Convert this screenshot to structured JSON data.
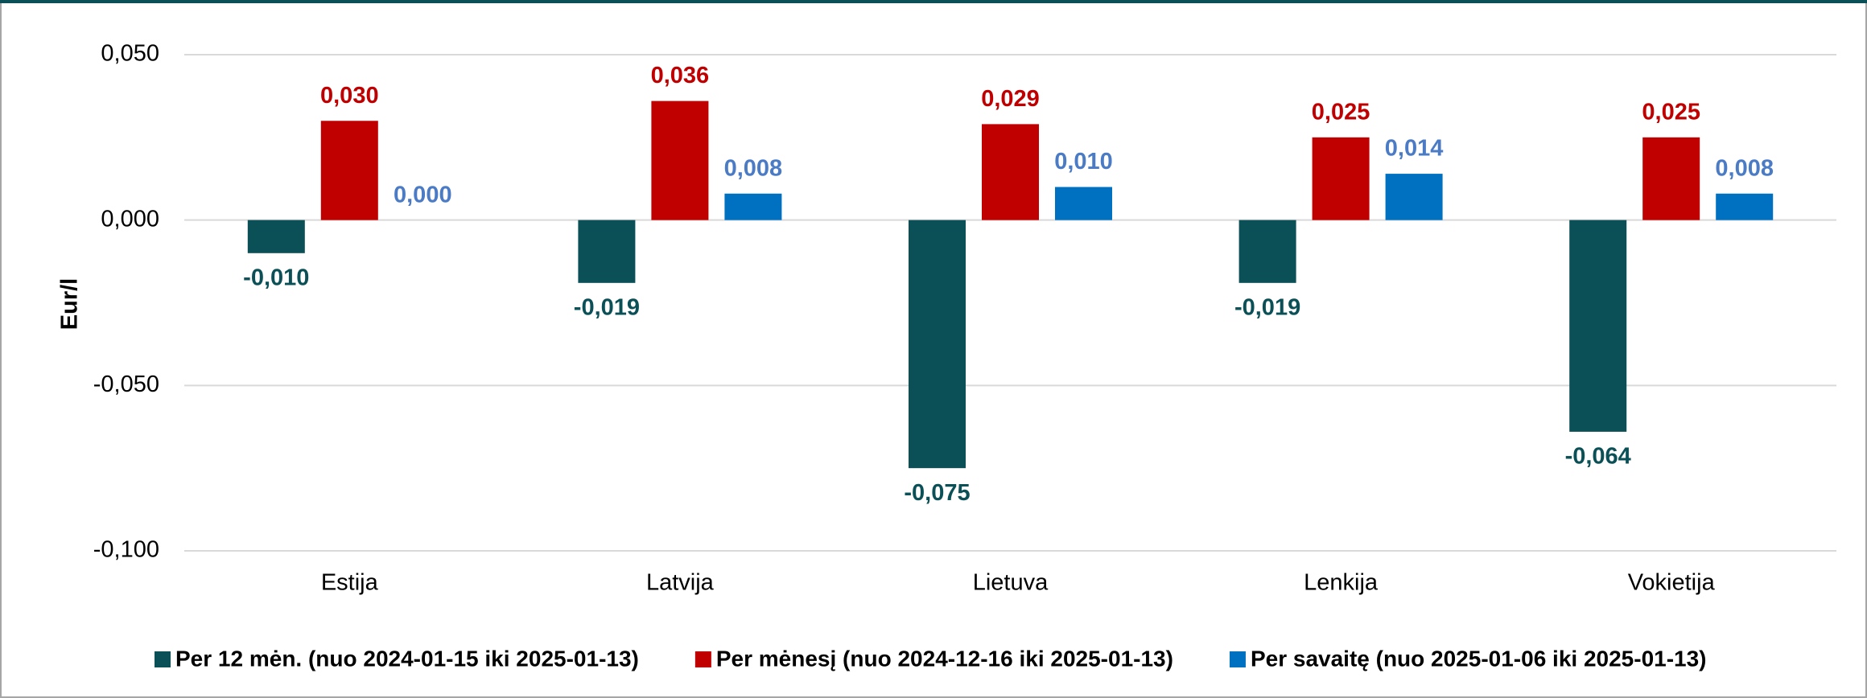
{
  "chart_data": {
    "type": "bar",
    "y_axis_label": "Eur/l",
    "categories": [
      "Estija",
      "Latvija",
      "Lietuva",
      "Lenkija",
      "Vokietija"
    ],
    "series": [
      {
        "name": "Per 12 mėn. (nuo 2024-01-15 iki 2025-01-13)",
        "color": "#0b5057",
        "label_color": "#0b5057",
        "values": [
          -0.01,
          -0.019,
          -0.075,
          -0.019,
          -0.064
        ],
        "value_labels": [
          "-0,010",
          "-0,019",
          "-0,075",
          "-0,019",
          "-0,064"
        ]
      },
      {
        "name": "Per mėnesį (nuo 2024-12-16 iki 2025-01-13)",
        "color": "#c00000",
        "label_color": "#c00000",
        "values": [
          0.03,
          0.036,
          0.029,
          0.025,
          0.025
        ],
        "value_labels": [
          "0,030",
          "0,036",
          "0,029",
          "0,025",
          "0,025"
        ]
      },
      {
        "name": "Per savaitę (nuo 2025-01-06 iki 2025-01-13)",
        "color": "#0070c0",
        "label_color": "#4a7bc4",
        "values": [
          0.0,
          0.008,
          0.01,
          0.014,
          0.008
        ],
        "value_labels": [
          "0,000",
          "0,008",
          "0,010",
          "0,014",
          "0,008"
        ]
      }
    ],
    "ylim": [
      -0.1,
      0.05
    ],
    "yticks": [
      {
        "value": -0.1,
        "label": "-0,100"
      },
      {
        "value": -0.05,
        "label": "-0,050"
      },
      {
        "value": 0,
        "label": "0,000"
      },
      {
        "value": 0.05,
        "label": "0,050"
      }
    ],
    "grid": true,
    "legend": "bottom"
  }
}
